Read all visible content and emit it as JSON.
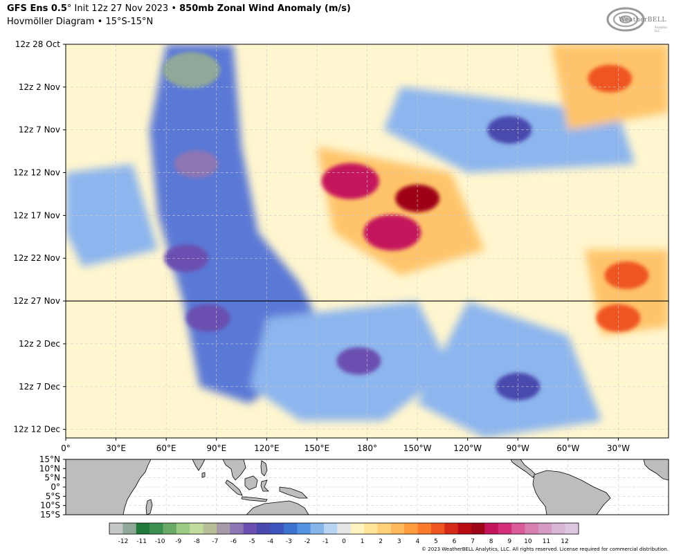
{
  "header": {
    "model": "GFS Ens 0.5",
    "degree": "°",
    "init": " Init 12z 27 Nov 2023 • ",
    "variable": "850mb Zonal Wind Anomaly (m/s)",
    "subtitle": "Hovmöller Diagram • 15°S-15°N"
  },
  "logo": {
    "text": "WeatherBELL",
    "sub": "Analytics LLC"
  },
  "copyright": "© 2023 WeatherBELL Analytics, LLC. All rights reserved. License required for commercial distribution.",
  "colors": {
    "init_line": "#000000",
    "land": "#bdbdbd",
    "map_border": "#000000"
  },
  "chart_data": {
    "type": "heatmap",
    "title": "850mb Zonal Wind Anomaly (m/s)",
    "xlabel": "Longitude",
    "ylabel": "Time",
    "x_ticks": [
      "0°",
      "30°E",
      "60°E",
      "90°E",
      "120°E",
      "150°E",
      "180°",
      "150°W",
      "120°W",
      "90°W",
      "60°W",
      "30°W"
    ],
    "x_tick_lon": [
      0,
      30,
      60,
      90,
      120,
      150,
      180,
      210,
      240,
      270,
      300,
      330
    ],
    "x_range": [
      0,
      360
    ],
    "y_ticks": [
      "12z 28 Oct",
      "12z 2 Nov",
      "12z 7 Nov",
      "12z 12 Nov",
      "12z 17 Nov",
      "12z 22 Nov",
      "12z 27 Nov",
      "12z 2 Dec",
      "12z 7 Dec",
      "12z 12 Dec"
    ],
    "y_tick_day": [
      0,
      5,
      10,
      15,
      20,
      25,
      30,
      35,
      40,
      45
    ],
    "y_range_days": [
      0,
      46
    ],
    "init_day": 30,
    "grid": true,
    "colorbar": {
      "ticks": [
        "-12",
        "-11",
        "-10",
        "-9",
        "-8",
        "-7",
        "-6",
        "-5",
        "-4",
        "-3",
        "-2",
        "-1",
        "0",
        "1",
        "2",
        "3",
        "4",
        "5",
        "6",
        "7",
        "8",
        "9",
        "10",
        "11",
        "12"
      ],
      "colors": [
        "#c4c9c5",
        "#8fa89a",
        "#1f7a3c",
        "#3c8f50",
        "#6aaa66",
        "#9ccb83",
        "#c2dc9e",
        "#b7bf98",
        "#a69aa8",
        "#8d76b4",
        "#6a4fb0",
        "#4848ae",
        "#3e55c0",
        "#3b72d0",
        "#5292e0",
        "#86b5ea",
        "#b9d3f3",
        "#e6e6e6",
        "#fff4c0",
        "#ffe49a",
        "#ffd27a",
        "#ffb85c",
        "#ff9c40",
        "#fb7b2c",
        "#ee5520",
        "#d62a18",
        "#b80c14",
        "#9e0418",
        "#c4145c",
        "#d62f7a",
        "#d95b98",
        "#d87fb2",
        "#d69bc4",
        "#d7b6d4",
        "#dcc8de"
      ]
    },
    "features": [
      {
        "lon": 75,
        "day": 3,
        "value": -11
      },
      {
        "lon": 78,
        "day": 14,
        "value": -6
      },
      {
        "lon": 72,
        "day": 25,
        "value": -5
      },
      {
        "lon": 85,
        "day": 32,
        "value": -5
      },
      {
        "lon": 170,
        "day": 16,
        "value": 8
      },
      {
        "lon": 195,
        "day": 22,
        "value": 8
      },
      {
        "lon": 210,
        "day": 18,
        "value": 7
      },
      {
        "lon": 325,
        "day": 4,
        "value": 5
      },
      {
        "lon": 335,
        "day": 27,
        "value": 5
      },
      {
        "lon": 330,
        "day": 32,
        "value": 5
      },
      {
        "lon": 175,
        "day": 37,
        "value": -5
      },
      {
        "lon": 270,
        "day": 40,
        "value": -4
      },
      {
        "lon": 265,
        "day": 10,
        "value": -4
      }
    ]
  },
  "map": {
    "lat_ticks": [
      "15°N",
      "10°N",
      "5°N",
      "0°",
      "5°S",
      "10°S",
      "15°S"
    ]
  }
}
